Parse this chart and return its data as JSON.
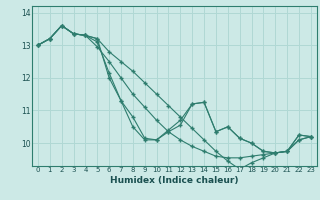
{
  "xlabel": "Humidex (Indice chaleur)",
  "ylabel": "",
  "bg_color": "#cce9e6",
  "line_color": "#2e7d6e",
  "grid_color": "#b0d8d4",
  "xlim": [
    -0.5,
    23.5
  ],
  "ylim": [
    9.3,
    14.2
  ],
  "yticks": [
    10,
    11,
    12,
    13,
    14
  ],
  "xticks": [
    0,
    1,
    2,
    3,
    4,
    5,
    6,
    7,
    8,
    9,
    10,
    11,
    12,
    13,
    14,
    15,
    16,
    17,
    18,
    19,
    20,
    21,
    22,
    23
  ],
  "series": [
    [
      13.0,
      13.2,
      13.6,
      13.35,
      13.3,
      13.2,
      12.0,
      11.3,
      10.8,
      10.15,
      10.1,
      10.35,
      10.55,
      11.2,
      11.25,
      10.35,
      10.5,
      10.15,
      10.0,
      9.75,
      9.7,
      9.75,
      10.25,
      10.2
    ],
    [
      13.0,
      13.2,
      13.6,
      13.35,
      13.3,
      13.1,
      12.15,
      11.3,
      10.5,
      10.1,
      10.1,
      10.4,
      10.7,
      11.2,
      11.25,
      10.35,
      10.5,
      10.15,
      10.0,
      9.75,
      9.7,
      9.75,
      10.25,
      10.2
    ],
    [
      13.0,
      13.2,
      13.6,
      13.35,
      13.3,
      12.95,
      12.5,
      12.0,
      11.5,
      11.1,
      10.7,
      10.35,
      10.1,
      9.9,
      9.75,
      9.6,
      9.55,
      9.55,
      9.6,
      9.65,
      9.7,
      9.75,
      10.1,
      10.2
    ],
    [
      13.0,
      13.2,
      13.6,
      13.35,
      13.3,
      13.2,
      12.8,
      12.5,
      12.2,
      11.85,
      11.5,
      11.15,
      10.8,
      10.45,
      10.1,
      9.75,
      9.45,
      9.2,
      9.4,
      9.55,
      9.7,
      9.75,
      10.1,
      10.2
    ]
  ]
}
